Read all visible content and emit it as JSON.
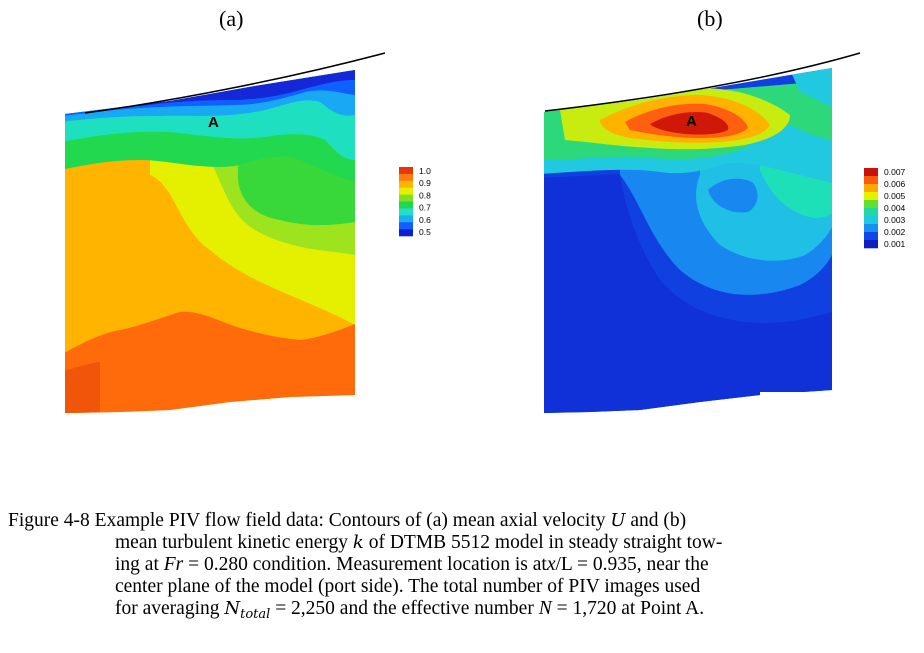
{
  "panels": [
    {
      "label": "(a)",
      "point_label": "A",
      "legend_labels": [
        "1.0",
        "0.9",
        "0.8",
        "0.7",
        "0.6",
        "0.5"
      ],
      "legend_colors": [
        "#e8360a",
        "#ff7a10",
        "#ffb400",
        "#e4f000",
        "#80e020",
        "#20d850",
        "#20e0c8",
        "#1ab0f0",
        "#1060ff",
        "#1020d0"
      ]
    },
    {
      "label": "(b)",
      "point_label": "A",
      "legend_labels": [
        "0.007",
        "0.006",
        "0.005",
        "0.004",
        "0.003",
        "0.002",
        "0.001"
      ],
      "legend_colors": [
        "#c81408",
        "#ff5a10",
        "#ffa800",
        "#e8f000",
        "#60e030",
        "#20d8a0",
        "#20c8e0",
        "#1890f0",
        "#1048e8",
        "#1020c0"
      ]
    }
  ],
  "caption": {
    "lines": [
      "Figure 4-8 Example PIV flow field data: Contours of (a) mean axial velocity",
      "and (b)",
      "mean turbulent kinetic energy",
      "of DTMB 5512 model in steady straight tow-",
      "ing at",
      "Fr",
      "= 0.280 condition.  Measurement location is at",
      "x",
      "/L = 0.935, near the",
      "center plane of the model (port side).  The total number of PIV images used",
      "for averaging",
      "= 2,250 and the effective number",
      "N",
      "= 1,720 at Point A."
    ],
    "symbols": {
      "U": "U",
      "k": "k",
      "N": "N",
      "total": "total"
    }
  }
}
